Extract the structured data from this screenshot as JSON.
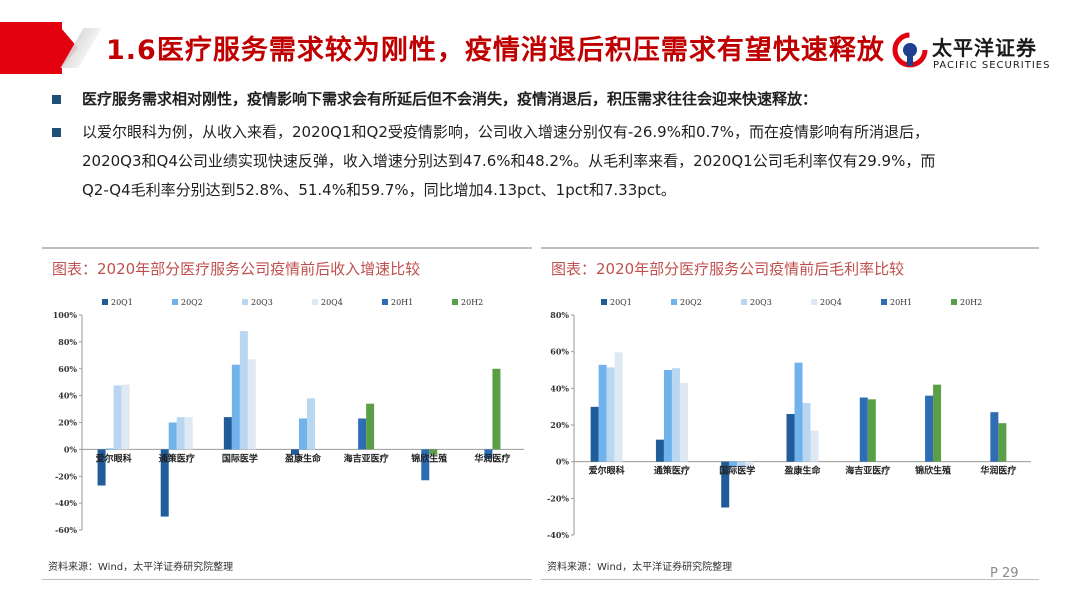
{
  "header": {
    "title": "1.6医疗服务需求较为刚性，疫情消退后积压需求有望快速释放",
    "logo_cn": "太平洋证券",
    "logo_en": "PACIFIC SECURITIES"
  },
  "bullets": [
    {
      "lines": [
        "医疗服务需求相对刚性，疫情影响下需求会有所延后但不会消失，疫情消退后，积压需求往往会迎来快速释放："
      ]
    },
    {
      "lines": [
        "以爱尔眼科为例，从收入来看，2020Q1和Q2受疫情影响，公司收入增速分别仅有-26.9%和0.7%，而在疫情影响有所消退后，",
        "2020Q3和Q4公司业绩实现快速反弹，收入增速分别达到47.6%和48.2%。从毛利率来看，2020Q1公司毛利率仅有29.9%，而",
        "Q2-Q4毛利率分别达到52.8%、51.4%和59.7%，同比增加4.13pct、1pct和7.33pct。"
      ]
    }
  ],
  "panels": [
    {
      "title": "图表：2020年部分医疗服务公司疫情前后收入增速比较",
      "source": "资料来源：Wind，太平洋证券研究院整理"
    },
    {
      "title": "图表：2020年部分医疗服务公司疫情前后毛利率比较",
      "source": "资料来源：Wind，太平洋证券研究院整理"
    }
  ],
  "page_number": "P 29",
  "chart_data": [
    {
      "type": "bar",
      "title": "图表：2020年部分医疗服务公司疫情前后收入增速比较",
      "categories": [
        "爱尔眼科",
        "通策医疗",
        "国际医学",
        "盈康生命",
        "海吉亚医疗",
        "锦欣生殖",
        "华润医疗"
      ],
      "ylim": [
        -60,
        100
      ],
      "yticks": [
        -60,
        -40,
        -20,
        0,
        20,
        40,
        60,
        80,
        100
      ],
      "ytick_labels": [
        "-60%",
        "-40%",
        "-20%",
        "0%",
        "20%",
        "40%",
        "60%",
        "80%",
        "100%"
      ],
      "legend_position": "top",
      "series": [
        {
          "name": "20Q1",
          "color": "#1f5c99",
          "values": [
            -26.9,
            -50,
            24,
            -4,
            null,
            null,
            null
          ]
        },
        {
          "name": "20Q2",
          "color": "#6fb2ec",
          "values": [
            0.7,
            20,
            63,
            23,
            null,
            null,
            null
          ]
        },
        {
          "name": "20Q3",
          "color": "#b9d7f0",
          "values": [
            47.6,
            24,
            88,
            38,
            null,
            null,
            null
          ]
        },
        {
          "name": "20Q4",
          "color": "#dfe9f3",
          "values": [
            48.2,
            24,
            67,
            null,
            null,
            null,
            null
          ]
        },
        {
          "name": "20H1",
          "color": "#2e6db4",
          "values": [
            null,
            null,
            null,
            null,
            23,
            -23,
            -7
          ]
        },
        {
          "name": "20H2",
          "color": "#5a9e45",
          "values": [
            null,
            null,
            null,
            null,
            34,
            -4,
            60
          ]
        }
      ]
    },
    {
      "type": "bar",
      "title": "图表：2020年部分医疗服务公司疫情前后毛利率比较",
      "categories": [
        "爱尔眼科",
        "通策医疗",
        "国际医学",
        "盈康生命",
        "海吉亚医疗",
        "锦欣生殖",
        "华润医疗"
      ],
      "ylim": [
        -40,
        80
      ],
      "yticks": [
        -40,
        -20,
        0,
        20,
        40,
        60,
        80
      ],
      "ytick_labels": [
        "-40%",
        "-20%",
        "0%",
        "20%",
        "40%",
        "60%",
        "80%"
      ],
      "legend_position": "top",
      "series": [
        {
          "name": "20Q1",
          "color": "#1f5c99",
          "values": [
            29.9,
            12,
            -25,
            26,
            null,
            null,
            null
          ]
        },
        {
          "name": "20Q2",
          "color": "#6fb2ec",
          "values": [
            52.8,
            50,
            -3,
            54,
            null,
            null,
            null
          ]
        },
        {
          "name": "20Q3",
          "color": "#b9d7f0",
          "values": [
            51.4,
            51,
            -3,
            32,
            null,
            null,
            null
          ]
        },
        {
          "name": "20Q4",
          "color": "#dfe9f3",
          "values": [
            59.7,
            43,
            -4,
            17,
            null,
            null,
            null
          ]
        },
        {
          "name": "20H1",
          "color": "#2e6db4",
          "values": [
            null,
            null,
            null,
            null,
            35,
            36,
            27
          ]
        },
        {
          "name": "20H2",
          "color": "#5a9e45",
          "values": [
            null,
            null,
            null,
            null,
            34,
            42,
            21
          ]
        }
      ]
    }
  ]
}
